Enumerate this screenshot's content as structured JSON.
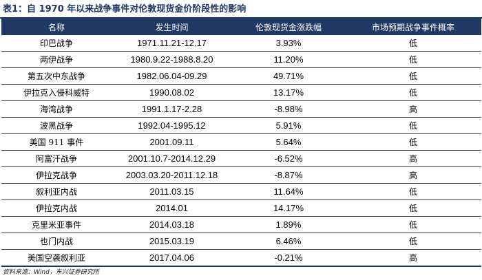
{
  "caption": "表1：自 1970 年以来战争事件对伦敦现货金价阶段性的影响",
  "table": {
    "headers": [
      "名称",
      "发生时间",
      "伦敦现货金涨跌幅",
      "市场预期战争事件概率"
    ],
    "rows": [
      {
        "name": "印巴战争",
        "time": "1971.11.21-12.17",
        "change": "3.93%",
        "prob": "低"
      },
      {
        "name": "两伊战争",
        "time": "1980.9.22-1988.8.20",
        "change": "11.20%",
        "prob": "低"
      },
      {
        "name": "第五次中东战争",
        "time": "1982.06.04-09.29",
        "change": "49.71%",
        "prob": "低"
      },
      {
        "name": "伊拉克入侵科威特",
        "time": "1990.08.02",
        "change": "13.17%",
        "prob": "低"
      },
      {
        "name": "海湾战争",
        "time": "1991.1.17-2.28",
        "change": "-8.98%",
        "prob": "高"
      },
      {
        "name": "波黑战争",
        "time": "1992.04-1995.12",
        "change": "5.91%",
        "prob": "低"
      },
      {
        "name": "美国 911 事件",
        "time": "2001.09.11",
        "change": "5.64%",
        "prob": "低"
      },
      {
        "name": "阿富汗战争",
        "time": "2001.10.7-2014.12.29",
        "change": "-6.52%",
        "prob": "高"
      },
      {
        "name": "伊拉克战争",
        "time": "2003.03.20-2011.12.18",
        "change": "-8.87%",
        "prob": "高"
      },
      {
        "name": "叙利亚内战",
        "time": "2011.03.15",
        "change": "11.64%",
        "prob": "低"
      },
      {
        "name": "伊拉克内战",
        "time": "2014.01",
        "change": "14.17%",
        "prob": "低"
      },
      {
        "name": "克里米亚事件",
        "time": "2014.03.18",
        "change": "1.89%",
        "prob": "低"
      },
      {
        "name": "也门内战",
        "time": "2015.03.19",
        "change": "6.46%",
        "prob": "低"
      },
      {
        "name": "美国空袭叙利亚",
        "time": "2017.04.06",
        "change": "-0.21%",
        "prob": "高"
      }
    ]
  },
  "source": "资料来源：Wind，东兴证券研究所",
  "colors": {
    "header_bg": "#1f3864",
    "header_text": "#ffffff",
    "rule": "#1f3864"
  }
}
